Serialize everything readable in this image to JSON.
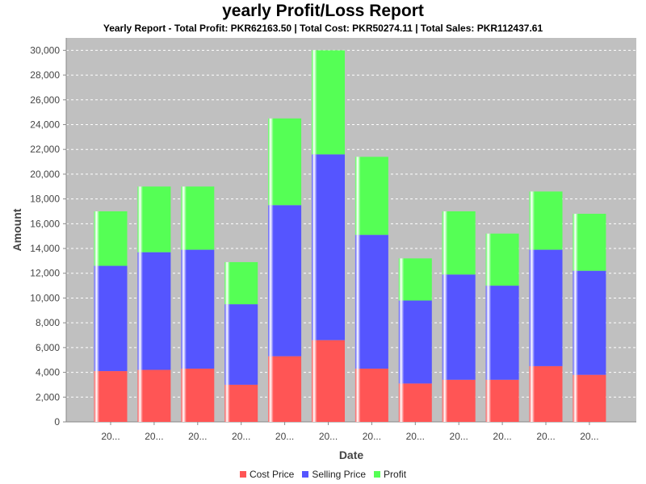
{
  "chart_data": {
    "type": "bar",
    "stacked": true,
    "title": "yearly Profit/Loss Report",
    "subtitle": "Yearly Report - Total Profit: PKR62163.50 | Total Cost: PKR50274.11 | Total Sales: PKR112437.61",
    "xlabel": "Date",
    "ylabel": "Amount",
    "ylim": [
      0,
      31000
    ],
    "yticks": [
      0,
      2000,
      4000,
      6000,
      8000,
      10000,
      12000,
      14000,
      16000,
      18000,
      20000,
      22000,
      24000,
      26000,
      28000,
      30000
    ],
    "categories": [
      "20...",
      "20...",
      "20...",
      "20...",
      "20...",
      "20...",
      "20...",
      "20...",
      "20...",
      "20...",
      "20...",
      "20..."
    ],
    "series": [
      {
        "name": "Cost Price",
        "color": "#ff5555",
        "values": [
          4100,
          4200,
          4300,
          3000,
          5300,
          6600,
          4300,
          3100,
          3400,
          3400,
          4500,
          3800
        ]
      },
      {
        "name": "Selling Price",
        "color": "#5555ff",
        "values": [
          8500,
          9500,
          9600,
          6500,
          12200,
          15000,
          10800,
          6700,
          8500,
          7600,
          9400,
          8400
        ]
      },
      {
        "name": "Profit",
        "color": "#55ff55",
        "values": [
          4400,
          5300,
          5100,
          3400,
          7000,
          8400,
          6300,
          3400,
          5100,
          4200,
          4700,
          4600
        ]
      }
    ],
    "grid": true,
    "legend": "bottom"
  }
}
